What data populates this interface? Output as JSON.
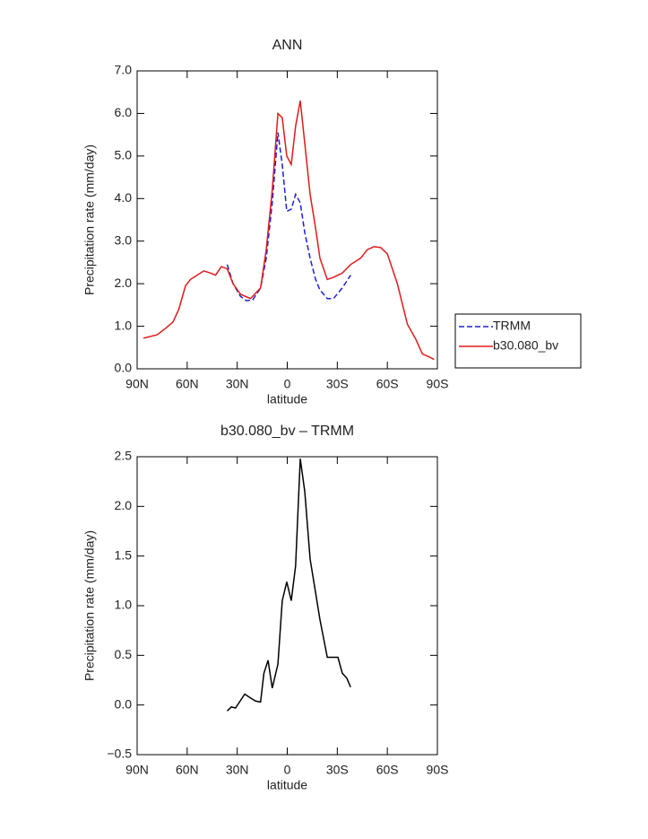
{
  "chart_data": [
    {
      "type": "line",
      "title": "ANN",
      "xlabel": "latitude",
      "ylabel": "Precipitation rate (mm/day)",
      "xlim": [
        90,
        -90
      ],
      "xticks": [
        {
          "value": 90,
          "label": "90N"
        },
        {
          "value": 60,
          "label": "60N"
        },
        {
          "value": 30,
          "label": "30N"
        },
        0,
        {
          "value": -30,
          "label": "30S"
        },
        {
          "value": -60,
          "label": "60S"
        },
        {
          "value": -90,
          "label": "90S"
        }
      ],
      "ylim": [
        0,
        7
      ],
      "yticks": [
        {
          "value": 0,
          "label": "0.0"
        },
        {
          "value": 1,
          "label": "1.0"
        },
        {
          "value": 2,
          "label": "2.0"
        },
        {
          "value": 3,
          "label": "3.0"
        },
        {
          "value": 4,
          "label": "4.0"
        },
        {
          "value": 5,
          "label": "5.0"
        },
        {
          "value": 6,
          "label": "6.0"
        },
        {
          "value": 7,
          "label": "7.0"
        }
      ],
      "legend": "right",
      "series": [
        {
          "name": "TRMM",
          "color": "#1f1fd6",
          "linestyle": "dashed",
          "x": [
            36,
            32.5,
            28,
            24.5,
            20.7,
            16,
            12.6,
            9,
            5.6,
            3,
            0.3,
            -2.4,
            -5,
            -7.8,
            -10.5,
            -13.7,
            -17,
            -19.6,
            -24,
            -27.7,
            -33,
            -38
          ],
          "values": [
            2.45,
            2.0,
            1.7,
            1.6,
            1.62,
            1.9,
            2.6,
            3.9,
            5.55,
            4.8,
            3.7,
            3.75,
            4.1,
            3.9,
            3.2,
            2.6,
            2.1,
            1.85,
            1.65,
            1.65,
            1.9,
            2.2
          ]
        },
        {
          "name": "b30.080_bv",
          "color": "#e01b1b",
          "linestyle": "solid",
          "x": [
            86.2,
            78,
            73,
            68.5,
            65,
            61,
            58,
            54,
            50,
            46,
            43,
            39.5,
            36,
            32.5,
            28,
            22,
            16,
            12.6,
            9,
            5.6,
            3,
            0.3,
            -2.4,
            -5,
            -7.8,
            -10.5,
            -13.7,
            -17,
            -19.6,
            -24,
            -27.7,
            -33,
            -38,
            -44,
            -48,
            -52,
            -56,
            -60,
            -66,
            -72,
            -77,
            -81,
            -85,
            -88
          ],
          "values": [
            0.72,
            0.8,
            0.95,
            1.1,
            1.4,
            1.95,
            2.1,
            2.2,
            2.3,
            2.25,
            2.2,
            2.4,
            2.35,
            2.0,
            1.75,
            1.65,
            1.9,
            2.8,
            4.2,
            6.0,
            5.9,
            5.0,
            4.8,
            5.7,
            6.3,
            5.3,
            4.1,
            3.3,
            2.6,
            2.1,
            2.15,
            2.25,
            2.45,
            2.6,
            2.8,
            2.87,
            2.85,
            2.7,
            2.0,
            1.05,
            0.7,
            0.35,
            0.28,
            0.22
          ]
        }
      ]
    },
    {
      "type": "line",
      "title": "b30.080_bv – TRMM",
      "xlabel": "latitude",
      "ylabel": "Precipitation rate (mm/day)",
      "xlim": [
        90,
        -90
      ],
      "xticks": [
        {
          "value": 90,
          "label": "90N"
        },
        {
          "value": 60,
          "label": "60N"
        },
        {
          "value": 30,
          "label": "30N"
        },
        0,
        {
          "value": -30,
          "label": "30S"
        },
        {
          "value": -60,
          "label": "60S"
        },
        {
          "value": -90,
          "label": "90S"
        }
      ],
      "ylim": [
        -0.5,
        2.5
      ],
      "yticks": [
        {
          "value": -0.5,
          "label": "−0.5"
        },
        {
          "value": 0,
          "label": "0.0"
        },
        0.5,
        {
          "value": 1,
          "label": "1.0"
        },
        1.5,
        {
          "value": 2,
          "label": "2.0"
        },
        2.5
      ],
      "series": [
        {
          "color": "#000000",
          "linestyle": "solid",
          "x": [
            36,
            33.5,
            31,
            25.5,
            22,
            19,
            16,
            14,
            11.5,
            9,
            5.6,
            3,
            0.3,
            -2.4,
            -5,
            -7.8,
            -10.5,
            -13.7,
            -17,
            -19.6,
            -24,
            -27.7,
            -30.4,
            -33,
            -35.7,
            -38
          ],
          "values": [
            -0.06,
            -0.02,
            -0.03,
            0.11,
            0.07,
            0.04,
            0.03,
            0.32,
            0.45,
            0.17,
            0.41,
            1.05,
            1.24,
            1.05,
            1.4,
            2.48,
            2.15,
            1.47,
            1.13,
            0.86,
            0.48,
            0.48,
            0.48,
            0.32,
            0.27,
            0.18
          ]
        }
      ]
    }
  ]
}
